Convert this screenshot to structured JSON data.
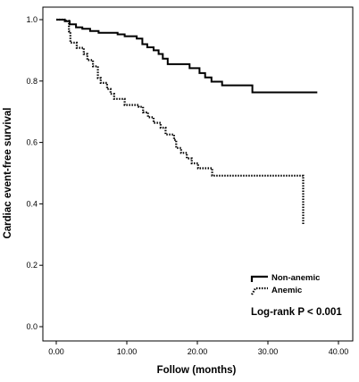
{
  "chart_data": {
    "type": "line",
    "subtype": "kaplan-meier-step",
    "title": "",
    "xlabel": "Follow (months)",
    "ylabel": "Cardiac event-free survival",
    "xlim": [
      0,
      40
    ],
    "ylim": [
      0,
      1.0
    ],
    "x_ticks": [
      "0.00",
      "10.00",
      "20.00",
      "30.00",
      "40.00"
    ],
    "x_tick_values": [
      0,
      10,
      20,
      30,
      40
    ],
    "y_ticks": [
      "0.0",
      "0.2",
      "0.4",
      "0.6",
      "0.8",
      "1.0"
    ],
    "y_tick_values": [
      0,
      0.2,
      0.4,
      0.6,
      0.8,
      1.0
    ],
    "grid": false,
    "legend_position": "bottom-right",
    "annotation": "Log-rank P < 0.001",
    "series": [
      {
        "name": "Non-anemic",
        "line_style": "solid",
        "color": "#000000",
        "points": [
          [
            0,
            1.0
          ],
          [
            1.2,
            0.995
          ],
          [
            1.9,
            0.985
          ],
          [
            2.8,
            0.975
          ],
          [
            3.7,
            0.97
          ],
          [
            4.8,
            0.963
          ],
          [
            6.0,
            0.957
          ],
          [
            8.7,
            0.952
          ],
          [
            9.7,
            0.946
          ],
          [
            11.4,
            0.938
          ],
          [
            12.2,
            0.92
          ],
          [
            12.9,
            0.91
          ],
          [
            13.8,
            0.9
          ],
          [
            14.5,
            0.888
          ],
          [
            15.1,
            0.873
          ],
          [
            15.8,
            0.855
          ],
          [
            18.9,
            0.842
          ],
          [
            20.3,
            0.826
          ],
          [
            21.1,
            0.812
          ],
          [
            22.0,
            0.798
          ],
          [
            23.5,
            0.786
          ],
          [
            27.8,
            0.763
          ],
          [
            37.0,
            0.763
          ]
        ]
      },
      {
        "name": "Anemic",
        "line_style": "dotted",
        "color": "#000000",
        "points": [
          [
            0,
            1.0
          ],
          [
            1.2,
            0.996
          ],
          [
            1.8,
            0.962
          ],
          [
            2.0,
            0.925
          ],
          [
            2.9,
            0.908
          ],
          [
            3.9,
            0.888
          ],
          [
            4.4,
            0.868
          ],
          [
            5.2,
            0.848
          ],
          [
            5.9,
            0.81
          ],
          [
            6.3,
            0.794
          ],
          [
            7.2,
            0.774
          ],
          [
            7.7,
            0.758
          ],
          [
            8.2,
            0.742
          ],
          [
            9.7,
            0.722
          ],
          [
            11.7,
            0.716
          ],
          [
            12.3,
            0.698
          ],
          [
            13.0,
            0.682
          ],
          [
            13.8,
            0.664
          ],
          [
            14.8,
            0.648
          ],
          [
            15.5,
            0.626
          ],
          [
            16.7,
            0.608
          ],
          [
            17.0,
            0.582
          ],
          [
            17.7,
            0.566
          ],
          [
            18.5,
            0.548
          ],
          [
            19.2,
            0.532
          ],
          [
            20.1,
            0.516
          ],
          [
            22.1,
            0.492
          ],
          [
            35.0,
            0.492
          ],
          [
            35.0,
            0.33
          ]
        ]
      }
    ]
  }
}
